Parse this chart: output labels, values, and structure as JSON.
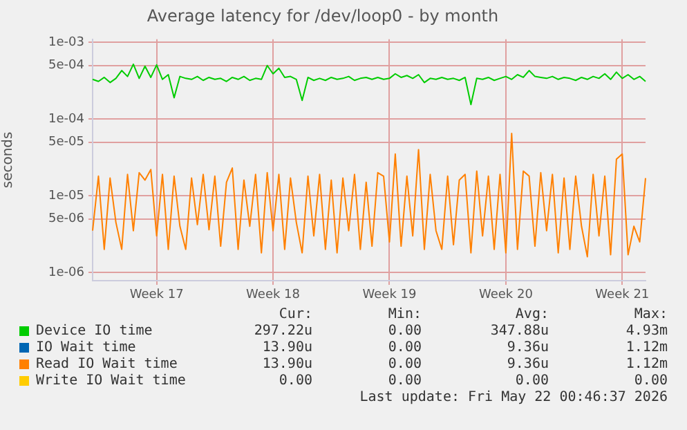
{
  "chart_data": {
    "type": "line",
    "title": "Average latency for /dev/loop0 - by month",
    "ylabel": "seconds",
    "log": "y",
    "grid": true,
    "legend": "bottom",
    "marker": "none",
    "line_style": "solid",
    "categories": [
      null,
      null,
      null,
      null,
      null,
      null,
      null,
      null,
      null,
      null,
      null,
      "Week 17",
      null,
      null,
      null,
      null,
      null,
      null,
      null,
      null,
      null,
      null,
      null,
      null,
      null,
      null,
      null,
      null,
      null,
      null,
      null,
      "Week 18",
      null,
      null,
      null,
      null,
      null,
      null,
      null,
      null,
      null,
      null,
      null,
      null,
      null,
      null,
      null,
      null,
      null,
      null,
      null,
      "Week 19",
      null,
      null,
      null,
      null,
      null,
      null,
      null,
      null,
      null,
      null,
      null,
      null,
      null,
      null,
      null,
      null,
      null,
      null,
      null,
      "Week 20",
      null,
      null,
      null,
      null,
      null,
      null,
      null,
      null,
      null,
      null,
      null,
      null,
      null,
      null,
      null,
      null,
      null,
      null,
      null,
      "Week 21",
      null,
      null,
      null,
      null
    ],
    "ylim": [
      7.8e-07,
      0.0011
    ],
    "yticks": [
      {
        "value": 1e-06,
        "label": "1e-06"
      },
      {
        "value": 5e-06,
        "label": "5e-06"
      },
      {
        "value": 1e-05,
        "label": "1e-05"
      },
      {
        "value": 5e-05,
        "label": "5e-05"
      },
      {
        "value": 0.0001,
        "label": "1e-04"
      },
      {
        "value": 0.0005,
        "label": "5e-04"
      },
      {
        "value": 0.001,
        "label": "1e-03"
      }
    ],
    "series": [
      {
        "name": "Device IO time",
        "color": "#00cc00",
        "values": [
          0.00033,
          0.00031,
          0.00035,
          0.0003,
          0.00034,
          0.00043,
          0.00036,
          0.00052,
          0.00034,
          0.00049,
          0.00035,
          0.00051,
          0.00033,
          0.00038,
          0.00019,
          0.00036,
          0.00034,
          0.00033,
          0.00036,
          0.00032,
          0.00035,
          0.00033,
          0.00034,
          0.00031,
          0.00035,
          0.00033,
          0.00036,
          0.00032,
          0.00034,
          0.00033,
          0.0005,
          0.00039,
          0.00046,
          0.00035,
          0.00036,
          0.00033,
          0.000175,
          0.00035,
          0.00032,
          0.00034,
          0.00032,
          0.00035,
          0.00033,
          0.00034,
          0.00036,
          0.00032,
          0.00034,
          0.00035,
          0.00033,
          0.00035,
          0.00033,
          0.00034,
          0.00039,
          0.00035,
          0.00037,
          0.00034,
          0.00038,
          0.0003,
          0.00034,
          0.00033,
          0.00035,
          0.00033,
          0.00034,
          0.00032,
          0.00035,
          0.000155,
          0.00034,
          0.00033,
          0.00035,
          0.00032,
          0.00034,
          0.00036,
          0.00033,
          0.00038,
          0.00035,
          0.00043,
          0.00036,
          0.00035,
          0.00034,
          0.00036,
          0.00033,
          0.00035,
          0.00034,
          0.00032,
          0.00035,
          0.00033,
          0.00036,
          0.00034,
          0.00039,
          0.00033,
          0.00041,
          0.00034,
          0.00038,
          0.00033,
          0.00036,
          0.00031
        ]
      },
      {
        "name": "IO Wait time",
        "color": "#0066b3",
        "values": [
          null,
          null,
          null,
          null,
          null,
          null,
          null,
          null,
          null,
          null,
          null,
          null,
          null,
          null,
          null,
          null,
          null,
          null,
          null,
          null,
          null,
          null,
          null,
          null,
          null,
          null,
          null,
          null,
          null,
          null,
          null,
          null,
          null,
          null,
          null,
          null,
          null,
          null,
          null,
          null,
          null,
          null,
          null,
          null,
          null,
          null,
          null,
          null,
          null,
          null,
          null,
          null,
          null,
          null,
          null,
          null,
          null,
          null,
          null,
          null,
          null,
          null,
          null,
          null,
          null,
          null,
          null,
          null,
          null,
          null,
          null,
          null,
          null,
          null,
          null,
          null,
          null,
          null,
          null,
          null,
          null,
          null,
          null,
          null,
          null,
          null,
          null,
          null,
          null,
          null,
          null,
          null,
          null,
          null,
          null,
          null
        ]
      },
      {
        "name": "Read IO Wait time",
        "color": "#ff8000",
        "values": [
          3.5e-06,
          1.8e-05,
          2e-06,
          1.7e-05,
          4.5e-06,
          2e-06,
          1.9e-05,
          3.5e-06,
          2e-05,
          1.6e-05,
          2.2e-05,
          3e-06,
          1.9e-05,
          2e-06,
          1.8e-05,
          4e-06,
          2e-06,
          1.7e-05,
          4.2e-06,
          1.9e-05,
          3.6e-06,
          1.8e-05,
          2.2e-06,
          1.5e-05,
          2.3e-05,
          2e-06,
          1.6e-05,
          4e-06,
          1.9e-05,
          1.8e-06,
          2e-05,
          3.5e-06,
          1.9e-05,
          2e-06,
          1.7e-05,
          4.5e-06,
          1.8e-06,
          1.8e-05,
          3e-06,
          1.9e-05,
          2e-06,
          1.6e-05,
          1.8e-06,
          1.7e-05,
          3.5e-06,
          1.9e-05,
          2e-06,
          1.5e-05,
          2.2e-06,
          2e-05,
          1.8e-05,
          2.5e-06,
          3.5e-05,
          2.2e-06,
          1.8e-05,
          3e-06,
          4e-05,
          2e-06,
          1.9e-05,
          3.5e-06,
          2e-06,
          1.8e-05,
          2.3e-06,
          1.6e-05,
          1.9e-05,
          1.8e-06,
          2.1e-05,
          3e-06,
          1.8e-05,
          2e-06,
          1.9e-05,
          1.8e-06,
          6.5e-05,
          2e-06,
          2.1e-05,
          1.8e-05,
          2.2e-06,
          2e-05,
          3.5e-06,
          1.9e-05,
          1.8e-06,
          1.7e-05,
          2e-06,
          1.8e-05,
          4e-06,
          1.6e-06,
          1.9e-05,
          3e-06,
          1.8e-05,
          1.7e-06,
          3e-05,
          3.5e-05,
          1.7e-06,
          4e-06,
          2.5e-06,
          1.7e-05
        ]
      },
      {
        "name": "Write IO Wait time",
        "color": "#ffcc00",
        "values": [
          null,
          null,
          null,
          null,
          null,
          null,
          null,
          null,
          null,
          null,
          null,
          null,
          null,
          null,
          null,
          null,
          null,
          null,
          null,
          null,
          null,
          null,
          null,
          null,
          null,
          null,
          null,
          null,
          null,
          null,
          null,
          null,
          null,
          null,
          null,
          null,
          null,
          null,
          null,
          null,
          null,
          null,
          null,
          null,
          null,
          null,
          null,
          null,
          null,
          null,
          null,
          null,
          null,
          null,
          null,
          null,
          null,
          null,
          null,
          null,
          null,
          null,
          null,
          null,
          null,
          null,
          null,
          null,
          null,
          null,
          null,
          null,
          null,
          null,
          null,
          null,
          null,
          null,
          null,
          null,
          null,
          null,
          null,
          null,
          null,
          null,
          null,
          null,
          null,
          null,
          null,
          null,
          null,
          null,
          null,
          null
        ]
      }
    ],
    "annotations": [
      "Cur:",
      "Min:",
      "Avg:",
      "Max:",
      "297.22u",
      "0.00",
      "347.88u",
      "4.93m",
      "13.90u",
      "0.00",
      "9.36u",
      "1.12m",
      "13.90u",
      "0.00",
      "9.36u",
      "1.12m",
      "0.00",
      "0.00",
      "0.00",
      "0.00",
      "Last update: Fri May 22 00:46:37 2026"
    ]
  }
}
